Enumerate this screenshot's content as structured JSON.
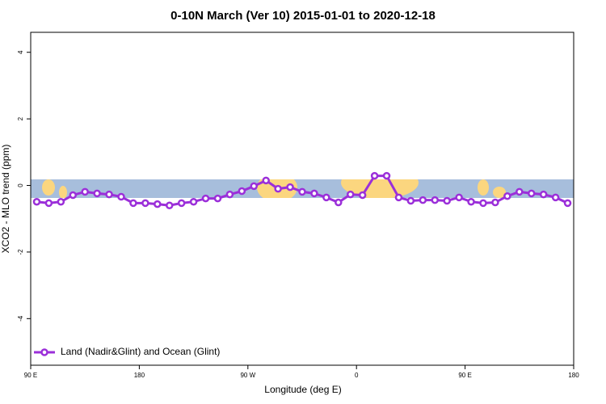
{
  "chart_data": {
    "type": "line",
    "title": "0-10N March (Ver 10)   2015-01-01 to 2020-12-18",
    "x_label": "Longitude (deg E)",
    "y_label": "XCO2 - MLO trend (ppm)",
    "xlim": [
      90,
      540
    ],
    "xticks": [
      {
        "value": 90,
        "label": "90 E"
      },
      180,
      {
        "value": 270,
        "label": "90 W"
      },
      {
        "value": 360,
        "label": "0"
      },
      {
        "value": 450,
        "label": "90 E"
      },
      {
        "value": 540,
        "label": "180"
      }
    ],
    "ylim": [
      -5.4,
      4.6
    ],
    "yticks": [
      -4,
      -2,
      0,
      2,
      4
    ],
    "legend": "bottomleft",
    "x": [
      95,
      105,
      115,
      125,
      135,
      145,
      155,
      165,
      175,
      185,
      195,
      205,
      215,
      225,
      235,
      245,
      255,
      265,
      275,
      285,
      295,
      305,
      315,
      325,
      335,
      345,
      355,
      365,
      375,
      385,
      395,
      405,
      415,
      425,
      435,
      445,
      455,
      465,
      475,
      485,
      495,
      505,
      515,
      525,
      535
    ],
    "series": [
      {
        "name": "Land (Nadir&Glint) and Ocean (Glint)",
        "color": "#9b2fd9",
        "values": [
          -0.49,
          -0.53,
          -0.49,
          -0.29,
          -0.19,
          -0.24,
          -0.27,
          -0.34,
          -0.53,
          -0.53,
          -0.56,
          -0.6,
          -0.53,
          -0.49,
          -0.39,
          -0.39,
          -0.27,
          -0.17,
          -0.02,
          0.15,
          -0.1,
          -0.05,
          -0.19,
          -0.24,
          -0.36,
          -0.51,
          -0.27,
          -0.29,
          0.29,
          0.29,
          -0.36,
          -0.46,
          -0.44,
          -0.44,
          -0.46,
          -0.36,
          -0.49,
          -0.53,
          -0.51,
          -0.32,
          -0.19,
          -0.24,
          -0.27,
          -0.36,
          -0.53
        ]
      }
    ]
  }
}
